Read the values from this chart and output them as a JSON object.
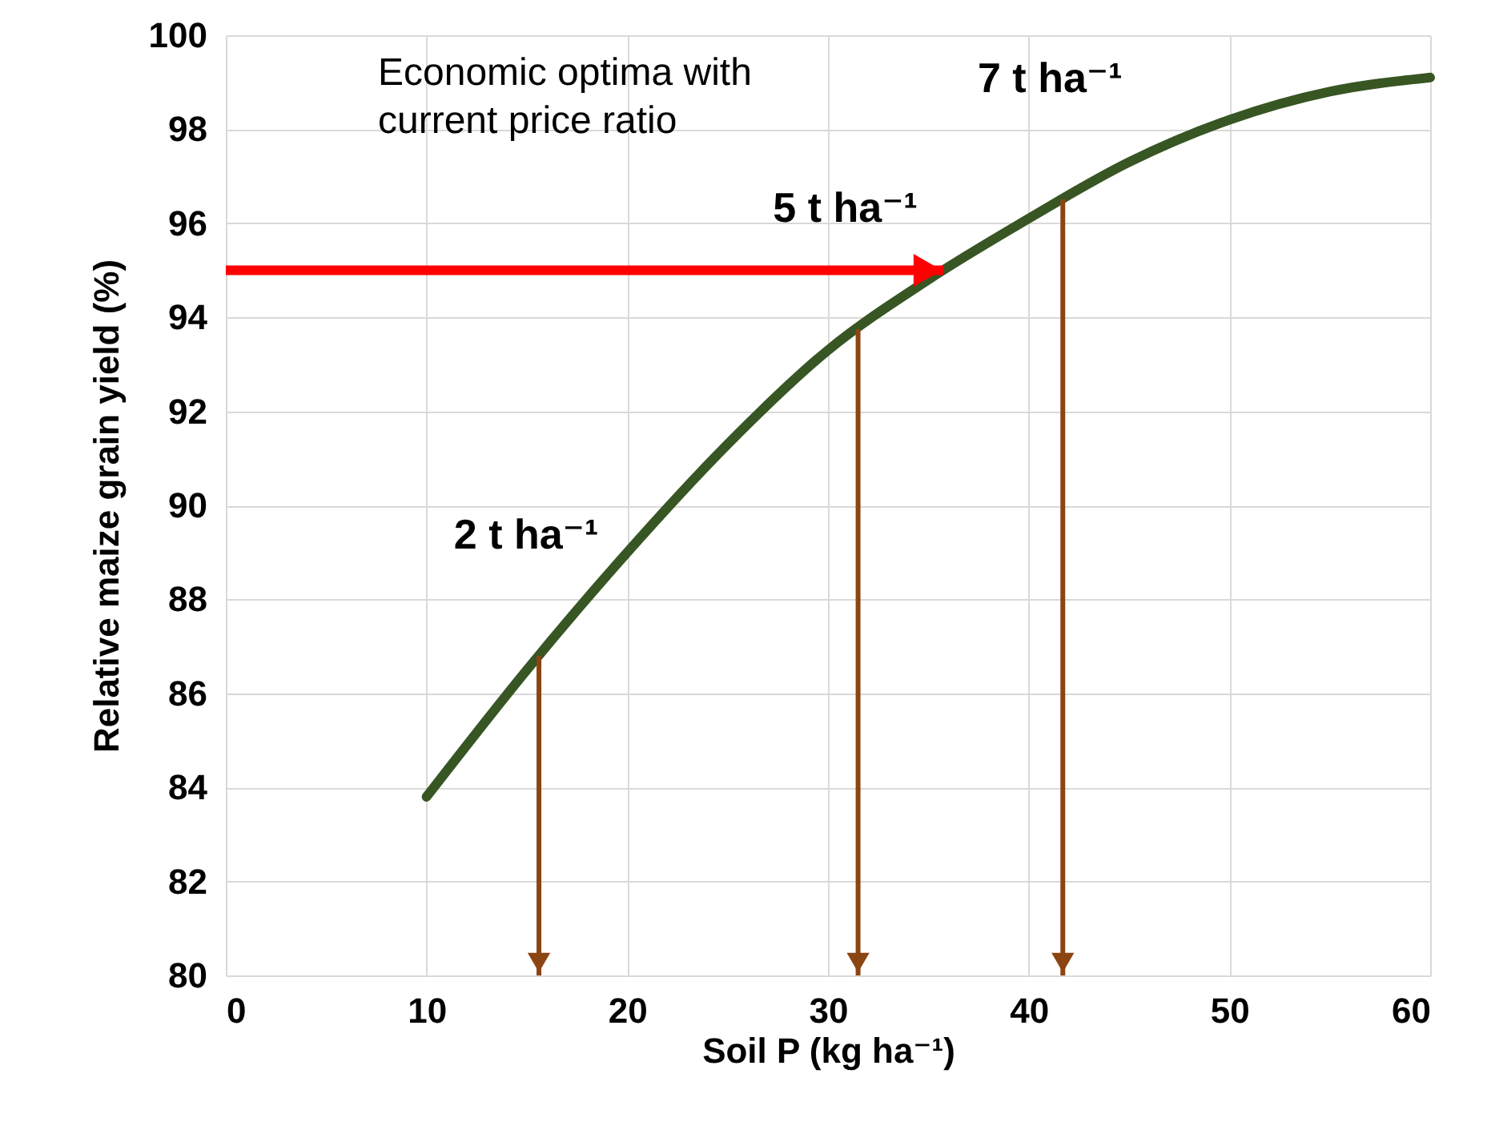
{
  "chart_data": {
    "type": "line",
    "xlabel": "Soil P (kg ha⁻¹)",
    "ylabel": "Relative maize grain yield (%)",
    "x": [
      10,
      15,
      20,
      25,
      30,
      35,
      40,
      45,
      50,
      55,
      60
    ],
    "series": [
      {
        "color": "#375623",
        "values": [
          83.8,
          86.5,
          89.0,
          91.3,
          93.3,
          94.8,
          96.1,
          97.3,
          98.2,
          98.8,
          99.1
        ]
      }
    ],
    "xlim": [
      0,
      60
    ],
    "xticks": [
      0,
      10,
      20,
      30,
      40,
      50,
      60
    ],
    "ylim": [
      80,
      100
    ],
    "yticks": [
      80,
      82,
      84,
      86,
      88,
      90,
      92,
      94,
      96,
      98,
      100
    ],
    "grid": true,
    "marker": "none",
    "line_style": "solid",
    "ref_lines": [
      {
        "axis": "y",
        "value": 95,
        "color": "#ff0000"
      },
      {
        "axis": "x",
        "value": 15.6,
        "label": "2 t ha⁻¹",
        "color": "#8b4513"
      },
      {
        "axis": "x",
        "value": 31.5,
        "label": "5 t ha⁻¹",
        "color": "#8b4513"
      },
      {
        "axis": "x",
        "value": 41.7,
        "label": "7 t ha⁻¹",
        "color": "#8b4513"
      }
    ],
    "annotations": [
      "Economic optima with\ncurrent price ratio"
    ]
  }
}
